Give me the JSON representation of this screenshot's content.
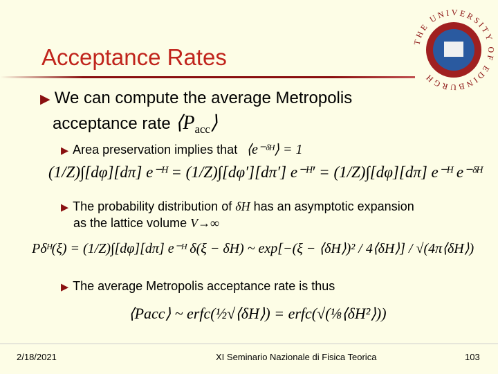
{
  "header": {
    "title": "Acceptance Rates",
    "logo": "THE UNIVERSITY OF EDINBURGH"
  },
  "body": {
    "bullet1": {
      "line1": "We can compute the average Metropolis",
      "line2": "acceptance rate",
      "math_main": "P",
      "math_sub": "acc"
    },
    "bullet2": {
      "text": "Area preservation implies that",
      "math": "⟨e⁻ᵟᴴ⟩ = 1"
    },
    "bullet3": {
      "text1": "The probability distribution of ",
      "math1": "δH",
      "text2": " has an asymptotic expansion",
      "text3": "as the lattice volume ",
      "math2": "V→∞"
    },
    "bullet4": "The average Metropolis acceptance rate is thus",
    "equations": [
      "(1/Z)∫[dφ][dπ] e⁻ᴴ = (1/Z)∫[dφ′][dπ′] e⁻ᴴ′ = (1/Z)∫[dφ][dπ] e⁻ᴴ e⁻ᵟᴴ",
      "Pδᴴ(ξ) = (1/Z)∫[dφ][dπ] e⁻ᴴ δ(ξ − δH) ~ exp[−(ξ − ⟨δH⟩)² / 4⟨δH⟩] / √(4π⟨δH⟩)",
      "⟨Pacc⟩ ~ erfc(½√⟨δH⟩) = erfc(√(⅛⟨δH²⟩))"
    ]
  },
  "footer": {
    "date": "2/18/2021",
    "center": "XI Seminario Nazionale di Fisica Teorica",
    "page": "103"
  }
}
